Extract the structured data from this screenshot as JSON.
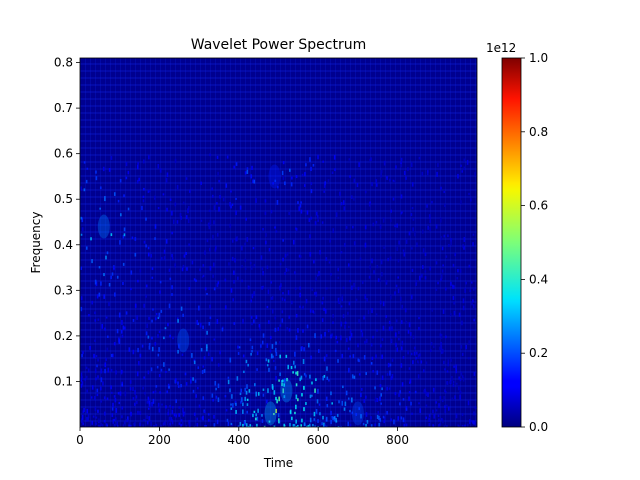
{
  "chart_data": {
    "type": "heatmap",
    "title": "Wavelet Power Spectrum",
    "xlabel": "Time",
    "ylabel": "Frequency",
    "xlim": [
      0,
      1000
    ],
    "ylim": [
      0.0,
      0.81
    ],
    "x_ticks": [
      0,
      200,
      400,
      600,
      800
    ],
    "y_ticks": [
      0.1,
      0.2,
      0.3,
      0.4,
      0.5,
      0.6,
      0.7,
      0.8
    ],
    "colormap": "jet",
    "colorbar": {
      "range": [
        0.0,
        1.0
      ],
      "ticks": [
        0.0,
        0.2,
        0.4,
        0.6,
        0.8,
        1.0
      ],
      "offset_label": "1e12"
    },
    "grid": false,
    "hotspots": [
      {
        "time": 60,
        "frequency": 0.44,
        "level": 0.25
      },
      {
        "time": 260,
        "frequency": 0.19,
        "level": 0.22
      },
      {
        "time": 480,
        "frequency": 0.03,
        "level": 0.3
      },
      {
        "time": 520,
        "frequency": 0.08,
        "level": 0.28
      },
      {
        "time": 700,
        "frequency": 0.03,
        "level": 0.2
      },
      {
        "time": 490,
        "frequency": 0.55,
        "level": 0.15
      }
    ]
  }
}
